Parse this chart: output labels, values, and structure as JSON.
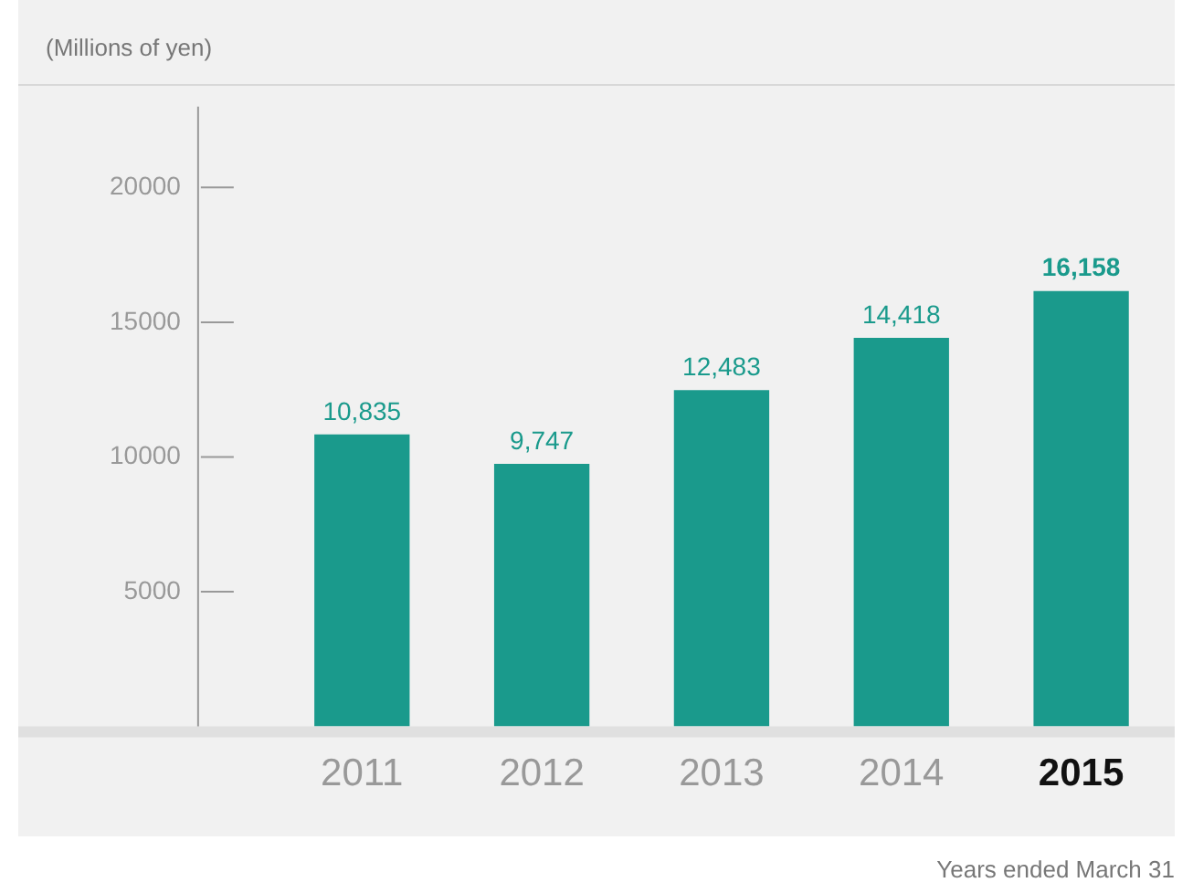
{
  "chart_data": {
    "type": "bar",
    "ylabel": "(Millions of yen)",
    "categories": [
      "2011",
      "2012",
      "2013",
      "2014",
      "2015"
    ],
    "values": [
      10835,
      9747,
      12483,
      14418,
      16158
    ],
    "color": "#1a9a8c",
    "value_labels": [
      "10,835",
      "9,747",
      "12,483",
      "14,418",
      "16,158"
    ],
    "ylim": [
      0,
      23000
    ],
    "yticks": [
      5000,
      10000,
      15000,
      20000
    ],
    "grid": false,
    "legend": false,
    "annotations": [
      "Years ended March 31"
    ]
  }
}
